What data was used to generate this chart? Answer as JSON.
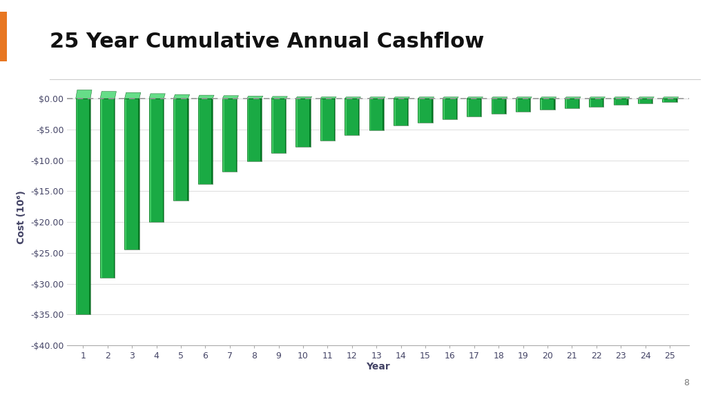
{
  "title": "25 Year Cumulative Annual Cashflow",
  "xlabel": "Year",
  "ylabel": "Cost (10⁶)",
  "years": [
    1,
    2,
    3,
    4,
    5,
    6,
    7,
    8,
    9,
    10,
    11,
    12,
    13,
    14,
    15,
    16,
    17,
    18,
    19,
    20,
    21,
    22,
    23,
    24,
    25
  ],
  "values": [
    -35.0,
    -29.0,
    -24.5,
    -20.0,
    -16.5,
    -13.8,
    -11.8,
    -10.2,
    -8.8,
    -7.8,
    -6.8,
    -5.9,
    -5.1,
    -4.4,
    -3.9,
    -3.3,
    -2.9,
    -2.5,
    -2.1,
    -1.8,
    -1.55,
    -1.3,
    -1.05,
    -0.75,
    -0.5
  ],
  "bar_color_main": "#1aaa44",
  "bar_color_left": "#44cc66",
  "bar_color_right": "#007722",
  "bar_color_top": "#66dd88",
  "bar_color_edge": "#005511",
  "ylim": [
    -40,
    1.5
  ],
  "yticks": [
    0,
    -5,
    -10,
    -15,
    -20,
    -25,
    -30,
    -35,
    -40
  ],
  "ytick_labels": [
    "$0.00",
    "-$5.00",
    "-$10.00",
    "-$15.00",
    "-$20.00",
    "-$25.00",
    "-$30.00",
    "-$35.00",
    "-$40.00"
  ],
  "background_color": "#ffffff",
  "title_fontsize": 22,
  "tick_fontsize": 9,
  "label_fontsize": 10,
  "title_color": "#111111",
  "tick_color": "#444466",
  "orange_bar_color": "#e87722",
  "page_number": "8",
  "grid_color": "#dddddd",
  "dashed_line_color": "#999999"
}
